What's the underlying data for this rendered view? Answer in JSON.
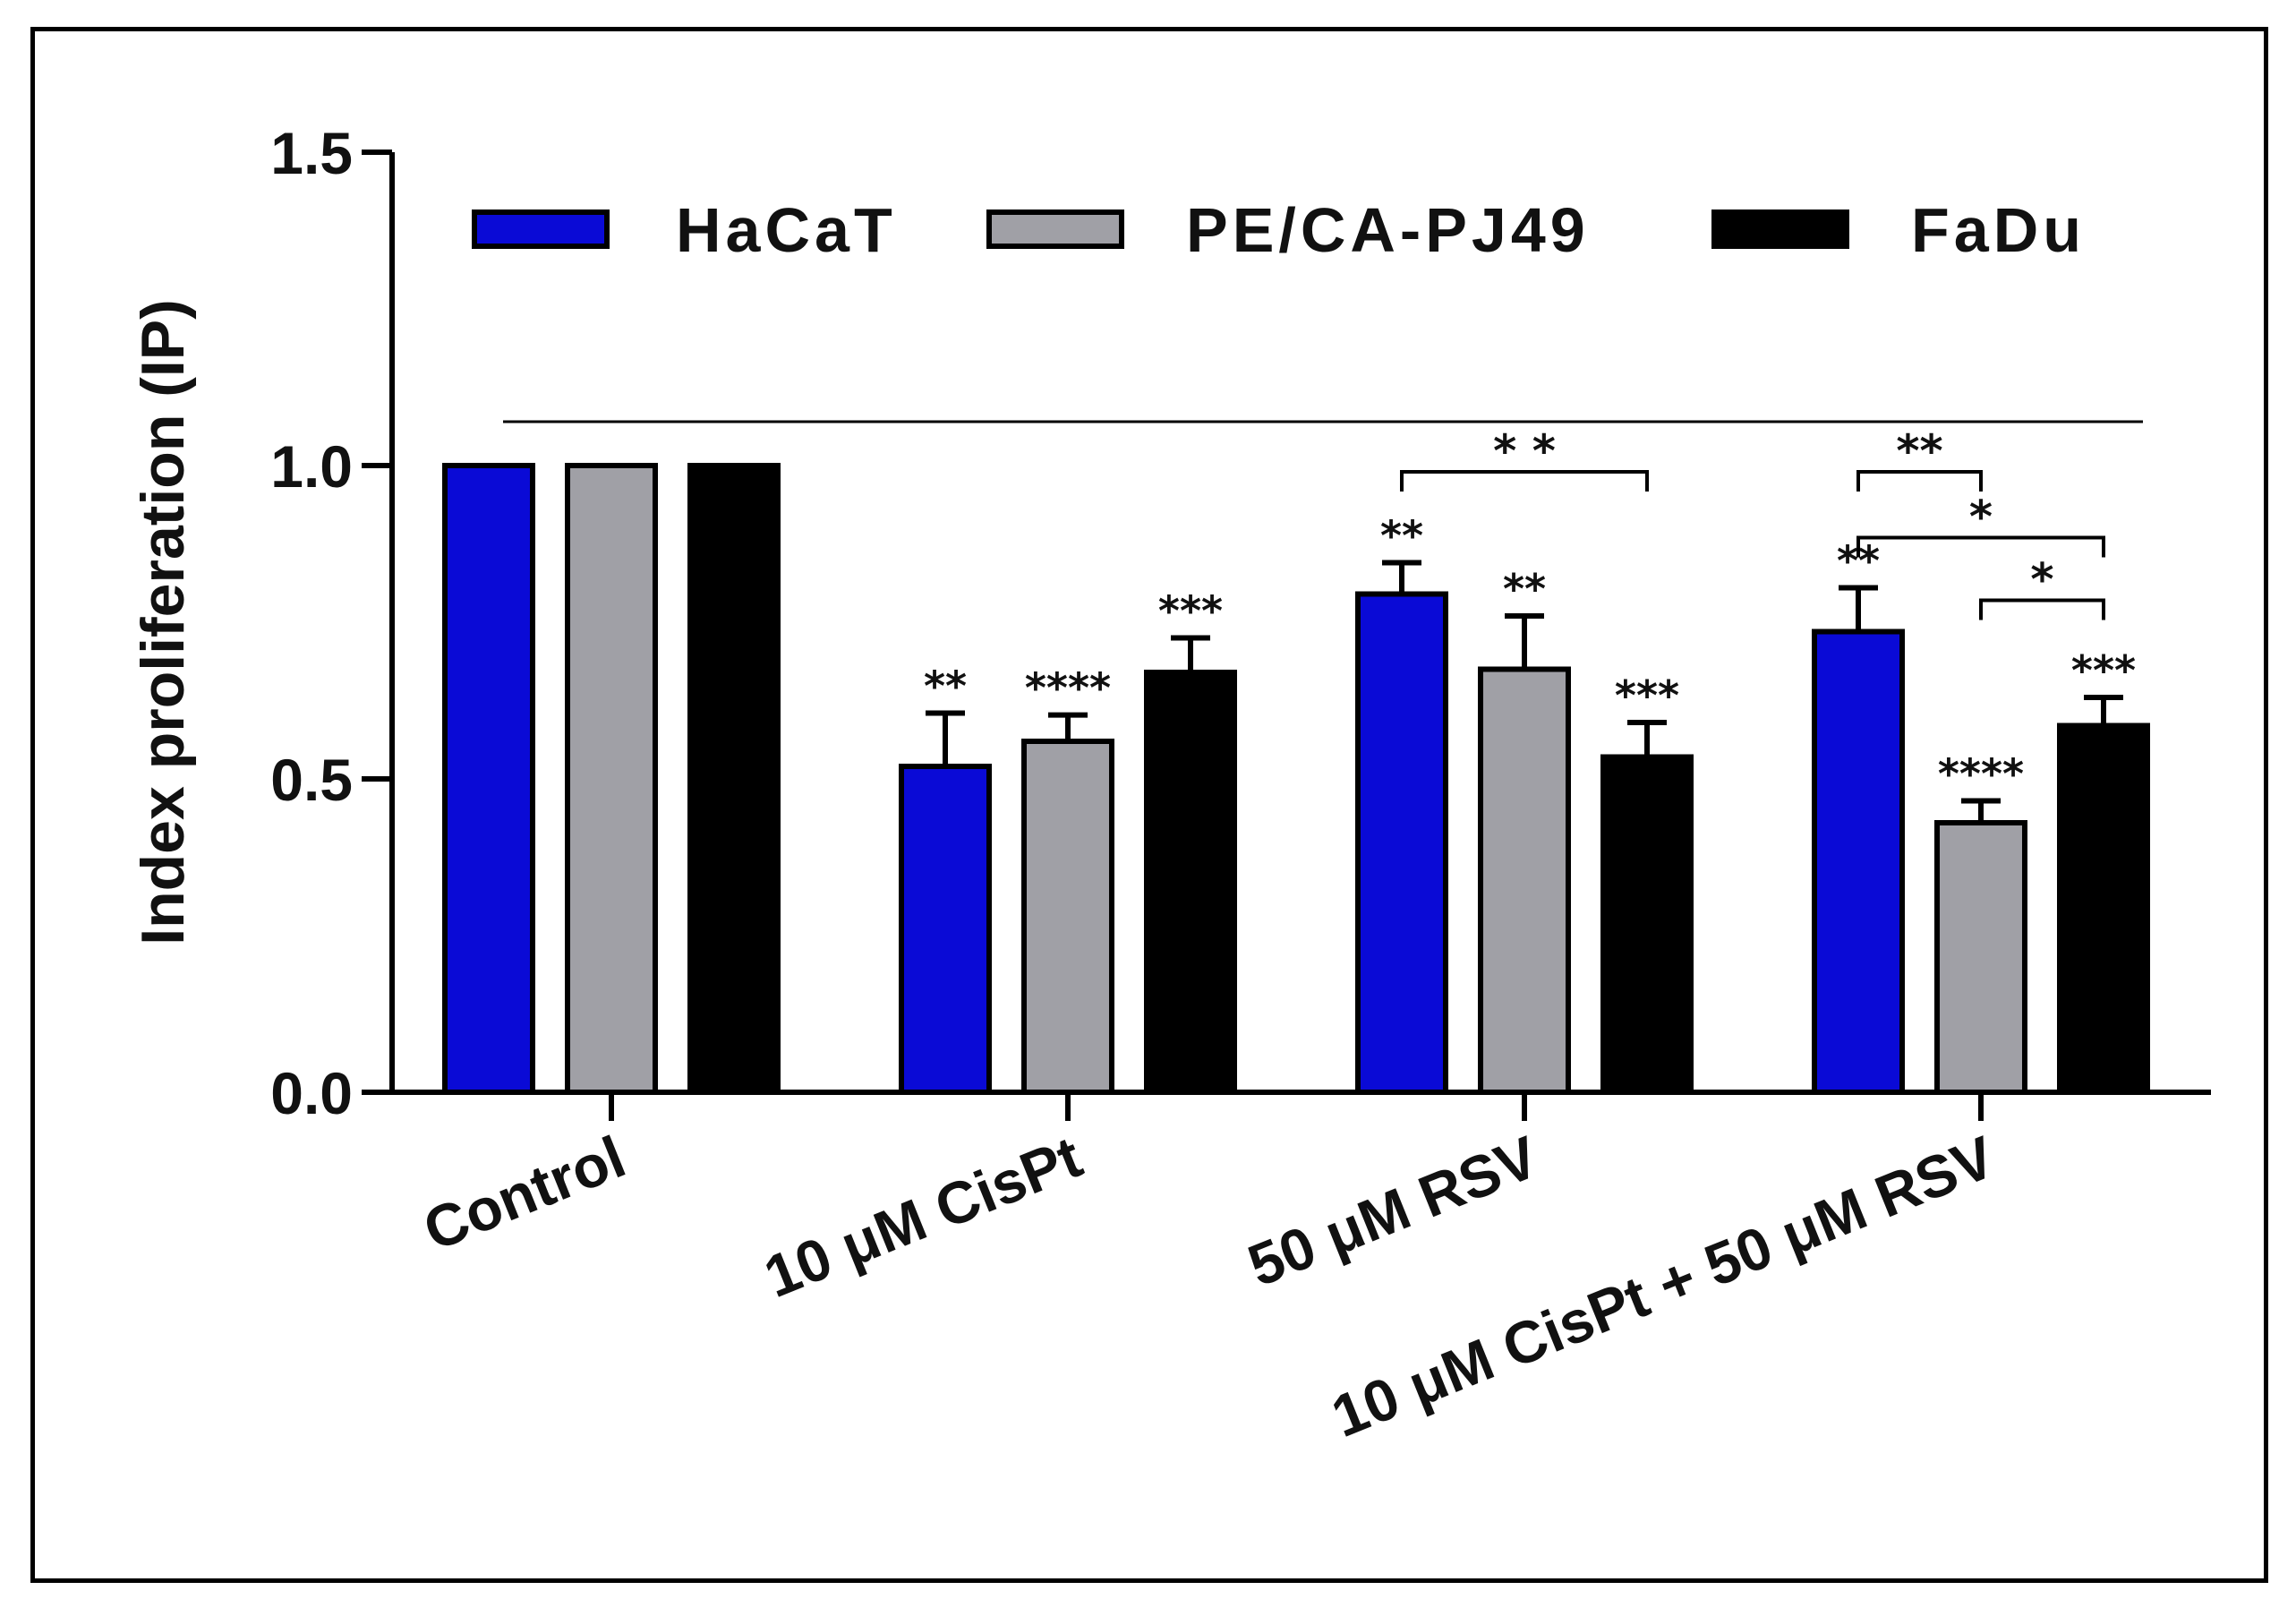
{
  "chart_data": {
    "type": "bar",
    "title": "",
    "xlabel": "",
    "ylabel": "Index proliferation (IP)",
    "ylim": [
      0,
      1.5
    ],
    "yticks": [
      "0.0",
      "0.5",
      "1.0",
      "1.5"
    ],
    "ytick_values": [
      0,
      0.5,
      1.0,
      1.5
    ],
    "grid": false,
    "legend_position": "top",
    "categories": [
      "Control",
      "10 μM CisPt",
      "50 μM RSV",
      "10 μM CisPt + 50 μM RSV"
    ],
    "series": [
      {
        "name": "HaCaT",
        "color": "#0a0ad6",
        "values": [
          1.0,
          0.52,
          0.795,
          0.735
        ],
        "errors": [
          0,
          0.085,
          0.05,
          0.07
        ],
        "significance": [
          "",
          "**",
          "**",
          "**"
        ]
      },
      {
        "name": "PE/CA-PJ49",
        "color": "#a0a0a6",
        "values": [
          1.0,
          0.56,
          0.675,
          0.43
        ],
        "errors": [
          0,
          0.042,
          0.085,
          0.035
        ],
        "significance": [
          "",
          "****",
          "**",
          "****"
        ]
      },
      {
        "name": "FaDu",
        "color": "#000000",
        "values": [
          1.0,
          0.67,
          0.535,
          0.585
        ],
        "errors": [
          0,
          0.055,
          0.055,
          0.045
        ],
        "significance": [
          "",
          "***",
          "***",
          "***"
        ]
      }
    ],
    "reference_line": {
      "from_category": 0,
      "to_category": 3,
      "value": 1.07
    },
    "brackets": [
      {
        "category_from": 2,
        "series_from": 0,
        "category_to": 2,
        "series_to": 2,
        "level": 0.99,
        "label": "* *"
      },
      {
        "category_from": 3,
        "series_from": 0,
        "category_to": 3,
        "series_to": 1,
        "level": 0.99,
        "label": "**"
      },
      {
        "category_from": 3,
        "series_from": 0,
        "category_to": 3,
        "series_to": 2,
        "level": 0.885,
        "label": "*"
      },
      {
        "category_from": 3,
        "series_from": 1,
        "category_to": 3,
        "series_to": 2,
        "level": 0.785,
        "label": "*"
      }
    ]
  }
}
